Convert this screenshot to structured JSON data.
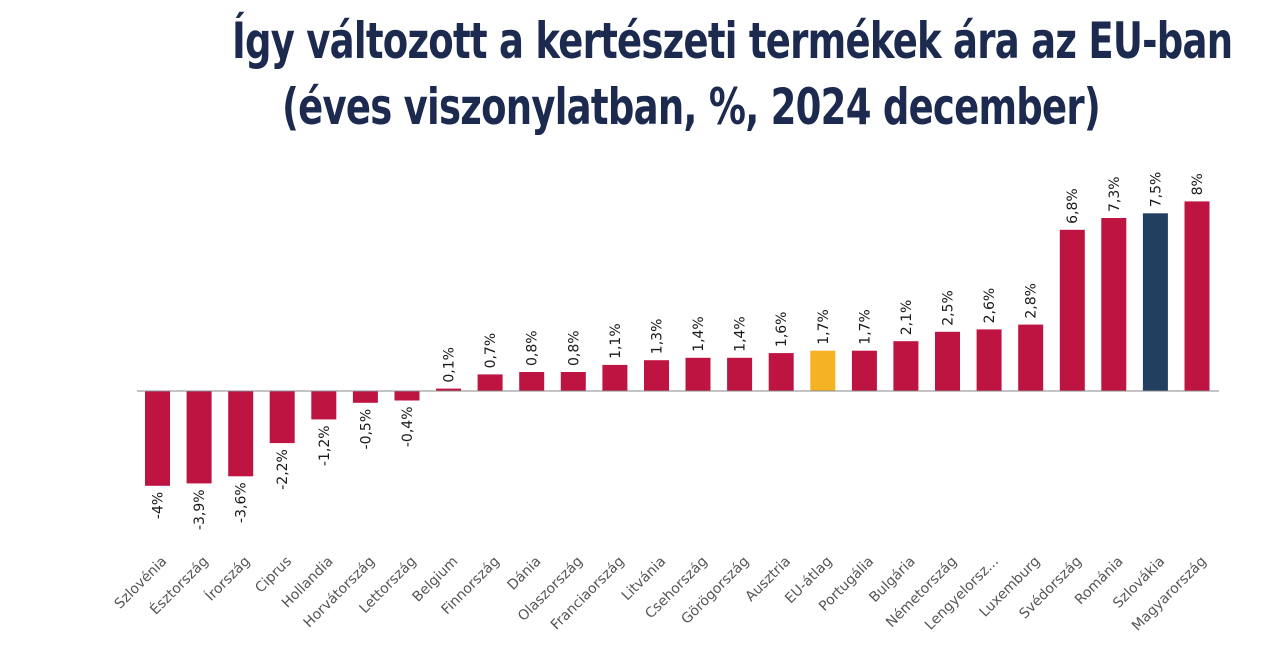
{
  "title": {
    "line1": "Így változott a kertészeti termékek ára az EU-ban",
    "line2": "(éves viszonylatban, %, 2024 december)"
  },
  "colors": {
    "default": "#be1441",
    "highlight_eu": "#f5b223",
    "highlight_sk": "#233f5f",
    "axis": "#888888"
  },
  "chart_data": {
    "type": "bar",
    "title": "Így változott a kertészeti termékek ára az EU-ban (éves viszonylatban, %, 2024 december)",
    "xlabel": "",
    "ylabel": "",
    "grid": false,
    "ylim": [
      -5,
      9
    ],
    "categories": [
      "Szlovénia",
      "Észtország",
      "Írország",
      "Ciprus",
      "Hollandia",
      "Horvátország",
      "Lettország",
      "Belgium",
      "Finnország",
      "Dánia",
      "Olaszország",
      "Franciaország",
      "Litvánia",
      "Csehország",
      "Görögország",
      "Ausztria",
      "EU-átlag",
      "Portugália",
      "Bulgária",
      "Németország",
      "Lengyelorsz...",
      "Luxemburg",
      "Svédország",
      "Románia",
      "Szlovákia",
      "Magyarország"
    ],
    "values": [
      -4,
      -3.9,
      -3.6,
      -2.2,
      -1.2,
      -0.5,
      -0.4,
      0.1,
      0.7,
      0.8,
      0.8,
      1.1,
      1.3,
      1.4,
      1.4,
      1.6,
      1.7,
      1.7,
      2.1,
      2.5,
      2.6,
      2.8,
      6.8,
      7.3,
      7.5,
      8
    ],
    "value_labels": [
      "-4%",
      "-3,9%",
      "-3,6%",
      "-2,2%",
      "-1,2%",
      "-0,5%",
      "-0,4%",
      "0,1%",
      "0,7%",
      "0,8%",
      "0,8%",
      "1,1%",
      "1,3%",
      "1,4%",
      "1,4%",
      "1,6%",
      "1,7%",
      "1,7%",
      "2,1%",
      "2,5%",
      "2,6%",
      "2,8%",
      "6,8%",
      "7,3%",
      "7,5%",
      "8%"
    ],
    "highlights": {
      "EU-átlag": "highlight_eu",
      "Szlovákia": "highlight_sk"
    }
  }
}
